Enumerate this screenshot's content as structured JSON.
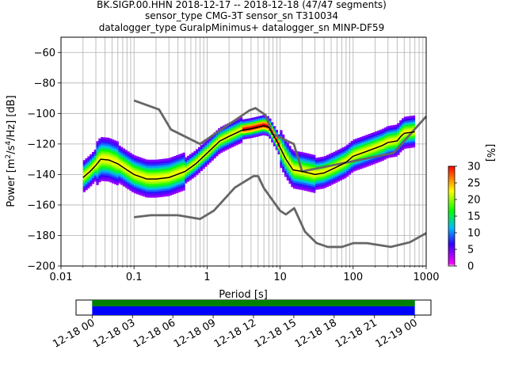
{
  "title_lines": [
    "BK.SIGP.00.HHN   2018-12-17 -- 2018-12-18  (47/47 segments)",
    "sensor_type CMG-3T sensor_sn T310034",
    "datalogger_type GuralpMinimus+ datalogger_sn MINP-DF59"
  ],
  "chart_data": {
    "type": "heatmap",
    "x_log_scale": true,
    "xlim": [
      0.01,
      1000
    ],
    "ylim": [
      -200,
      -50
    ],
    "xlabel": "Period [s]",
    "ylabel_parts": [
      "Power [m",
      "2",
      "/s",
      "4",
      "/Hz] [dB]"
    ],
    "x_ticks": [
      {
        "value": 0.01,
        "label": "0.01"
      },
      {
        "value": 0.1,
        "label": "0.1"
      },
      {
        "value": 1,
        "label": "1"
      },
      {
        "value": 10,
        "label": "10"
      },
      {
        "value": 100,
        "label": "100"
      },
      {
        "value": 1000,
        "label": "1000"
      }
    ],
    "y_ticks": [
      {
        "value": -60,
        "label": "−60"
      },
      {
        "value": -80,
        "label": "−80"
      },
      {
        "value": -100,
        "label": "−100"
      },
      {
        "value": -120,
        "label": "−120"
      },
      {
        "value": -140,
        "label": "−140"
      },
      {
        "value": -160,
        "label": "−160"
      },
      {
        "value": -180,
        "label": "−180"
      },
      {
        "value": -200,
        "label": "−200"
      }
    ],
    "grid": true,
    "nhnm": [
      [
        0.1,
        -91.5
      ],
      [
        0.22,
        -97.4
      ],
      [
        0.32,
        -110.5
      ],
      [
        0.8,
        -120
      ],
      [
        3.8,
        -98
      ],
      [
        4.6,
        -96.5
      ],
      [
        6.3,
        -101
      ],
      [
        7.9,
        -113.5
      ],
      [
        15.4,
        -120
      ],
      [
        20,
        -138
      ],
      [
        354.8,
        -126
      ],
      [
        10000,
        -48.5
      ]
    ],
    "nlnm": [
      [
        0.1,
        -168
      ],
      [
        0.17,
        -166.7
      ],
      [
        0.4,
        -166.7
      ],
      [
        0.8,
        -169.2
      ],
      [
        1.24,
        -163.7
      ],
      [
        2.4,
        -148.6
      ],
      [
        4.3,
        -141.1
      ],
      [
        5,
        -141.1
      ],
      [
        6,
        -149
      ],
      [
        10,
        -163.8
      ],
      [
        12,
        -166.2
      ],
      [
        15.6,
        -162.1
      ],
      [
        21.9,
        -177.5
      ],
      [
        31.6,
        -185
      ],
      [
        45,
        -187.5
      ],
      [
        70,
        -187.5
      ],
      [
        101,
        -185
      ],
      [
        154,
        -185
      ],
      [
        328,
        -187.5
      ],
      [
        600,
        -184.4
      ],
      [
        10000,
        -151.5
      ]
    ],
    "psd_mean": [
      [
        0.02,
        -142
      ],
      [
        0.025,
        -138
      ],
      [
        0.03,
        -134
      ],
      [
        0.035,
        -130
      ],
      [
        0.045,
        -130.5
      ],
      [
        0.06,
        -133
      ],
      [
        0.08,
        -137
      ],
      [
        0.1,
        -140
      ],
      [
        0.15,
        -143
      ],
      [
        0.2,
        -143
      ],
      [
        0.3,
        -142
      ],
      [
        0.5,
        -138
      ],
      [
        0.7,
        -133
      ],
      [
        1,
        -126
      ],
      [
        1.5,
        -118
      ],
      [
        2,
        -115
      ],
      [
        3,
        -111
      ],
      [
        4,
        -110
      ],
      [
        6,
        -108
      ],
      [
        7,
        -109
      ],
      [
        9,
        -118
      ],
      [
        12,
        -130
      ],
      [
        15,
        -137
      ],
      [
        20,
        -138
      ],
      [
        30,
        -140
      ],
      [
        40,
        -139
      ],
      [
        60,
        -135
      ],
      [
        80,
        -132
      ],
      [
        100,
        -128
      ],
      [
        150,
        -125
      ],
      [
        250,
        -121
      ],
      [
        300,
        -119
      ],
      [
        400,
        -118
      ],
      [
        450,
        -115
      ],
      [
        500,
        -113
      ],
      [
        700,
        -112
      ]
    ],
    "colorbar": {
      "label": "[%]",
      "range": [
        0,
        30
      ],
      "ticks": [
        0,
        5,
        10,
        15,
        20,
        25,
        30
      ]
    },
    "time_axis": {
      "ticks": [
        "12-18 00",
        "12-18 03",
        "12-18 06",
        "12-18 09",
        "12-18 12",
        "12-18 15",
        "12-18 18",
        "12-18 21",
        "12-19 00"
      ],
      "data_range_hours": [
        0,
        24
      ],
      "axis_range_hours": [
        -1.2,
        25.2
      ]
    },
    "colors": {
      "nm": "#666666",
      "mean": "#000000",
      "grid": "#b0b0b0",
      "time_gap": "#0000ff",
      "time_data": "#008000"
    }
  }
}
